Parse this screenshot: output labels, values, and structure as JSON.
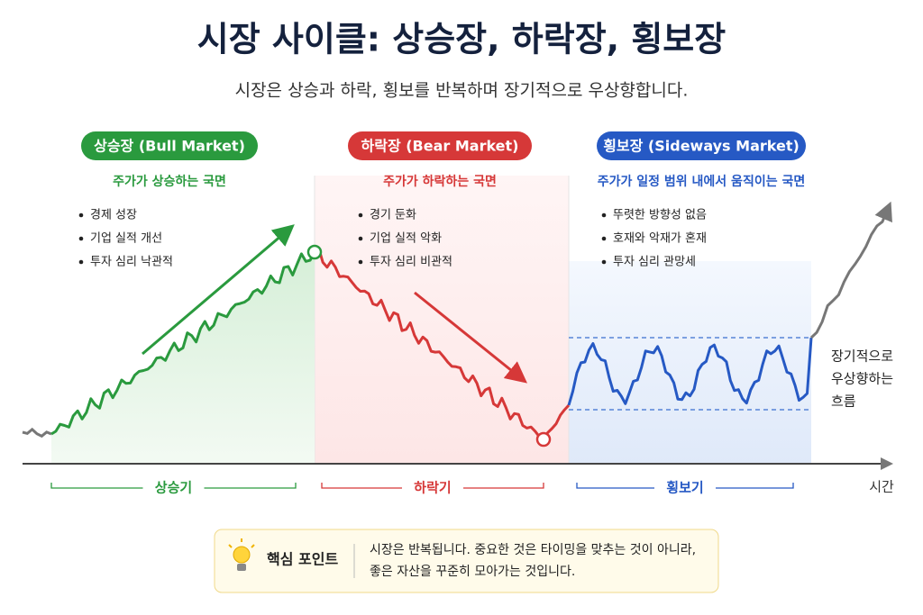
{
  "title": "시장 사이클: 상승장, 하락장, 횡보장",
  "subtitle": "시장은 상승과 하락, 횡보를 반복하며 장기적으로 우상향합니다.",
  "phases": [
    {
      "label": "상승장 (Bull Market)",
      "description": "주가가 상승하는 국면",
      "bullets": [
        "경제 성장",
        "기업 실적 개선",
        "투자 심리 낙관적"
      ],
      "period": "상승기"
    },
    {
      "label": "하락장 (Bear Market)",
      "description": "주가가 하락하는 국면",
      "bullets": [
        "경기 둔화",
        "기업 실적 악화",
        "투자 심리 비관적"
      ],
      "period": "하락기"
    },
    {
      "label": "횡보장 (Sideways Market)",
      "description": "주가가 일정 범위 내에서 움직이는 국면",
      "bullets": [
        "뚜렷한 방향성 없음",
        "호재와 악재가 혼재",
        "투자 심리 관망세"
      ],
      "period": "횡보기"
    }
  ],
  "annotation": [
    "장기적으로",
    "우상향하는",
    "흐름"
  ],
  "x_axis_label": "시간",
  "key_point": {
    "label": "핵심 포인트",
    "text": [
      "시장은 반복됩니다.  중요한 것은 타이밍을 맞추는 것이 아니라,",
      "좋은 자산을 꾸준히 모아가는 것입니다."
    ]
  }
}
